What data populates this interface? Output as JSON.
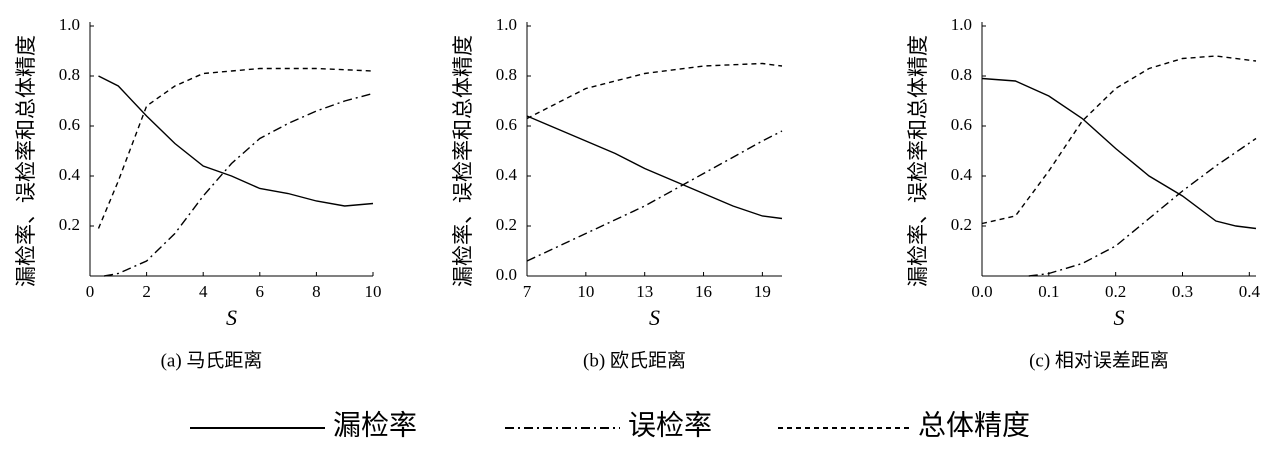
{
  "chart_data": [
    {
      "type": "line",
      "caption": "(a) 马氏距离",
      "xlabel": "S",
      "ylabel": "漏检率、误检率和总体精度",
      "xlim": [
        0,
        10
      ],
      "ylim": [
        0,
        1
      ],
      "xticks": [
        0,
        2,
        4,
        6,
        8,
        10
      ],
      "yticks": [
        0.2,
        0.4,
        0.6,
        0.8,
        {
          "value": 1,
          "label": "1.0"
        }
      ],
      "series": [
        {
          "name": "漏检率",
          "color": "#000000",
          "dash": "solid",
          "x": [
            0.3,
            1,
            2,
            3,
            4,
            5,
            6,
            7,
            8,
            9,
            10
          ],
          "values": [
            0.8,
            0.76,
            0.64,
            0.53,
            0.44,
            0.4,
            0.35,
            0.33,
            0.3,
            0.28,
            0.29
          ]
        },
        {
          "name": "误检率",
          "color": "#000000",
          "dash": "dashdot",
          "x": [
            0.5,
            1,
            2,
            3,
            4,
            5,
            6,
            7,
            8,
            9,
            10
          ],
          "values": [
            0,
            0.01,
            0.06,
            0.17,
            0.32,
            0.45,
            0.55,
            0.61,
            0.66,
            0.7,
            0.73
          ]
        },
        {
          "name": "总体精度",
          "color": "#000000",
          "dash": "dashed",
          "x": [
            0.3,
            1,
            2,
            3,
            4,
            5,
            6,
            8,
            10
          ],
          "values": [
            0.19,
            0.38,
            0.68,
            0.76,
            0.81,
            0.82,
            0.83,
            0.83,
            0.82
          ]
        }
      ]
    },
    {
      "type": "line",
      "caption": "(b) 欧氏距离",
      "xlabel": "S",
      "ylabel": "漏检率、误检率和总体精度",
      "xlim": [
        7,
        20
      ],
      "ylim": [
        0,
        1
      ],
      "xticks": [
        7,
        10,
        13,
        16,
        19
      ],
      "yticks": [
        {
          "value": 0,
          "label": "0.0"
        },
        0.2,
        0.4,
        0.6,
        0.8,
        {
          "value": 1,
          "label": "1.0"
        }
      ],
      "series": [
        {
          "color": "#000000",
          "dash": "solid",
          "x": [
            7,
            8.5,
            10,
            11.5,
            13,
            14.5,
            16,
            17.5,
            19,
            20
          ],
          "values": [
            0.64,
            0.59,
            0.54,
            0.49,
            0.43,
            0.38,
            0.33,
            0.28,
            0.24,
            0.23
          ]
        },
        {
          "color": "#000000",
          "dash": "dashdot",
          "x": [
            7,
            10,
            13,
            16,
            19,
            20
          ],
          "values": [
            0.06,
            0.17,
            0.28,
            0.41,
            0.54,
            0.58
          ]
        },
        {
          "color": "#000000",
          "dash": "dashed",
          "x": [
            7,
            10,
            13,
            16,
            19,
            20
          ],
          "values": [
            0.63,
            0.75,
            0.81,
            0.84,
            0.85,
            0.84
          ]
        }
      ]
    },
    {
      "type": "line",
      "caption": "(c) 相对误差距离",
      "xlabel": "S",
      "ylabel": "漏检率、误检率和总体精度",
      "xlim": [
        0,
        0.41
      ],
      "ylim": [
        0,
        1
      ],
      "xticks": [
        {
          "value": 0,
          "label": "0.0"
        },
        0.1,
        0.2,
        0.3,
        0.4
      ],
      "yticks": [
        0.2,
        0.4,
        0.6,
        0.8,
        {
          "value": 1,
          "label": "1.0"
        }
      ],
      "series": [
        {
          "color": "#000000",
          "dash": "solid",
          "x": [
            0,
            0.05,
            0.1,
            0.15,
            0.2,
            0.25,
            0.3,
            0.35,
            0.38,
            0.41
          ],
          "values": [
            0.79,
            0.78,
            0.72,
            0.63,
            0.51,
            0.4,
            0.32,
            0.22,
            0.2,
            0.19
          ]
        },
        {
          "color": "#000000",
          "dash": "dashdot",
          "x": [
            0.07,
            0.1,
            0.15,
            0.2,
            0.25,
            0.3,
            0.35,
            0.41
          ],
          "values": [
            0,
            0.01,
            0.05,
            0.12,
            0.23,
            0.34,
            0.44,
            0.55
          ]
        },
        {
          "color": "#000000",
          "dash": "dashed",
          "x": [
            0,
            0.05,
            0.1,
            0.15,
            0.2,
            0.25,
            0.3,
            0.35,
            0.41
          ],
          "values": [
            0.21,
            0.24,
            0.42,
            0.62,
            0.75,
            0.83,
            0.87,
            0.88,
            0.86
          ]
        }
      ]
    }
  ]
}
